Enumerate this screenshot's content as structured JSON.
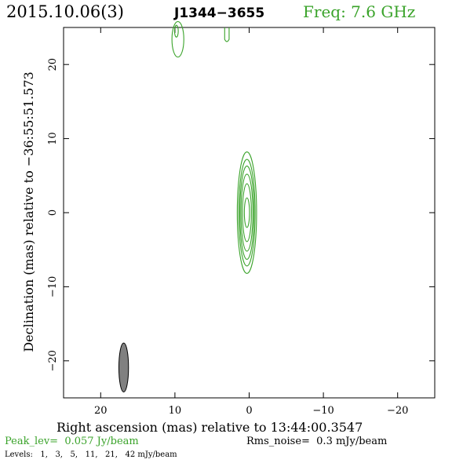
{
  "header": {
    "date": "2015.10.06(3)",
    "source": "J1344−3655",
    "freq": "Freq: 7.6 GHz"
  },
  "footer": {
    "peak": "Peak_lev=  0.057 Jy/beam",
    "rms": "Rms_noise=  0.3 mJy/beam",
    "levels": "Levels:   1,   3,   5,   11,   21,   42 mJy/beam"
  },
  "colors": {
    "contour": "#3aa32a",
    "beam": "#808080",
    "axes": "#000000"
  },
  "chart_data": {
    "type": "contour",
    "xlabel": "Right ascension (mas) relative to 13:44:00.3547",
    "ylabel": "Declination (mas) relative to −36:55:51.573",
    "xlim": [
      25,
      -25
    ],
    "ylim": [
      -25,
      25
    ],
    "xticks": [
      20,
      10,
      0,
      -10,
      -20
    ],
    "yticks": [
      20,
      10,
      0,
      -10,
      -20
    ],
    "xtick_labels": [
      "20",
      "10",
      "0",
      "−10",
      "−20"
    ],
    "ytick_labels": [
      "20",
      "10",
      "0",
      "−10",
      "−20"
    ],
    "contour_levels_mJy": [
      1,
      3,
      5,
      11,
      21,
      42
    ],
    "peak_Jy_per_beam": 0.057,
    "rms_mJy_per_beam": 0.3,
    "core_contours": [
      {
        "x": 0.3,
        "y": 0.0,
        "rx": 1.3,
        "ry": 8.2
      },
      {
        "x": 0.3,
        "y": 0.0,
        "rx": 1.1,
        "ry": 7.2
      },
      {
        "x": 0.3,
        "y": 0.0,
        "rx": 0.95,
        "ry": 6.3
      },
      {
        "x": 0.3,
        "y": 0.0,
        "rx": 0.8,
        "ry": 5.2
      },
      {
        "x": 0.3,
        "y": 0.0,
        "rx": 0.6,
        "ry": 3.9
      },
      {
        "x": 0.3,
        "y": 0.0,
        "rx": 0.35,
        "ry": 2.0
      }
    ],
    "other_features": [
      {
        "shape": "ellipse",
        "x": 9.6,
        "y": 23.4,
        "rx": 0.8,
        "ry": 2.4
      },
      {
        "shape": "ellipse",
        "x": 9.8,
        "y": 24.5,
        "rx": 0.25,
        "ry": 0.8
      },
      {
        "shape": "open-bottom",
        "x": 3.0,
        "y_top": 25.0,
        "y_bottom": 23.1,
        "half_width": 0.3
      }
    ],
    "beam": {
      "x": 16.9,
      "y": -20.9,
      "rx": 0.65,
      "ry": 3.3
    }
  }
}
